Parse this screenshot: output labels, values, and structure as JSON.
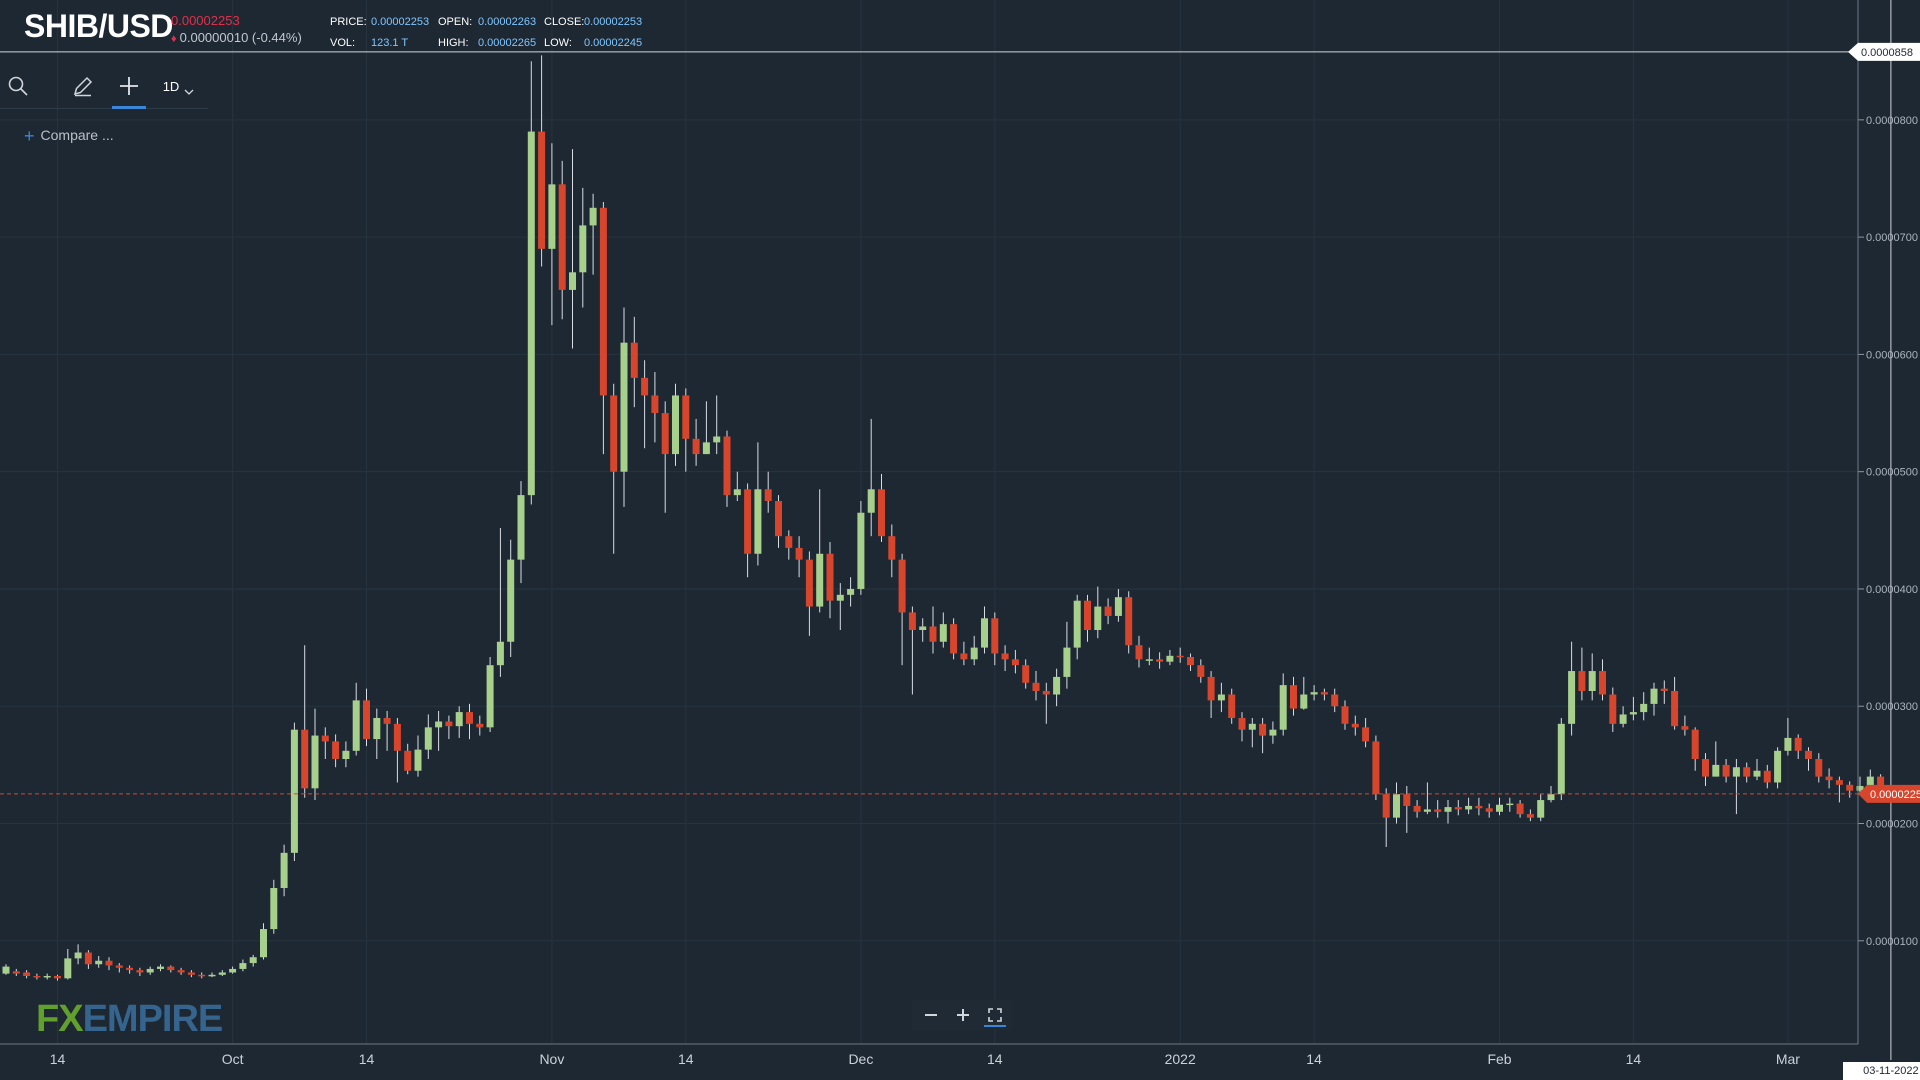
{
  "header": {
    "symbol": "SHIB/USD",
    "last_price": "0.00002253",
    "change_text": "0.00000010 (-0.44%)",
    "labels": {
      "price": "PRICE:",
      "open": "OPEN:",
      "close": "CLOSE:",
      "vol": "VOL:",
      "high": "HIGH:",
      "low": "LOW:"
    },
    "values": {
      "price": "0.00002253",
      "open": "0.00002263",
      "close": "0.00002253",
      "vol": "123.1 T",
      "high": "0.00002265",
      "low": "0.00002245"
    }
  },
  "toolbar": {
    "timeframe": "1D",
    "compare_label": "Compare ..."
  },
  "icons": [
    "search-icon",
    "pencil-icon",
    "crosshair-icon",
    "chevron-down-icon",
    "minus-icon",
    "plus-icon",
    "fullscreen-icon"
  ],
  "logo": {
    "part1": "FX",
    "part2": "EMPIRE"
  },
  "crosshair": {
    "price_label": "0.0000858",
    "date_label": "03-11-2022"
  },
  "last_price_label": "0.0000225",
  "colors": {
    "background": "#1e2833",
    "up": "#a8d08d",
    "down": "#d6452c",
    "accent": "#3a86d8",
    "price_tag": "#d6452c"
  },
  "chart_data": {
    "type": "candlestick",
    "title": "SHIB/USD",
    "ylim": [
      1.2e-06,
      8.57e-05
    ],
    "y_ticks": [
      {
        "value": 1e-05,
        "label": "0.0000100"
      },
      {
        "value": 2e-05,
        "label": "0.0000200"
      },
      {
        "value": 3e-05,
        "label": "0.0000300"
      },
      {
        "value": 4e-05,
        "label": "0.0000400"
      },
      {
        "value": 5e-05,
        "label": "0.0000500"
      },
      {
        "value": 6e-05,
        "label": "0.0000600"
      },
      {
        "value": 7e-05,
        "label": "0.0000700"
      },
      {
        "value": 8e-05,
        "label": "0.0000800"
      }
    ],
    "x_ticks": [
      {
        "date": "2021-09-14",
        "label": "14"
      },
      {
        "date": "2021-10-01",
        "label": "Oct"
      },
      {
        "date": "2021-10-14",
        "label": "14"
      },
      {
        "date": "2021-11-01",
        "label": "Nov"
      },
      {
        "date": "2021-11-14",
        "label": "14"
      },
      {
        "date": "2021-12-01",
        "label": "Dec"
      },
      {
        "date": "2021-12-14",
        "label": "14"
      },
      {
        "date": "2022-01-01",
        "label": "2022"
      },
      {
        "date": "2022-01-14",
        "label": "14"
      },
      {
        "date": "2022-02-01",
        "label": "Feb"
      },
      {
        "date": "2022-02-14",
        "label": "14"
      },
      {
        "date": "2022-03-01",
        "label": "Mar"
      }
    ],
    "grid": true,
    "last_price": 2.253e-05,
    "crosshair_date": "2022-03-11",
    "crosshair_price": 8.58e-05,
    "start_date": "2021-09-09",
    "candles": [
      [
        7.2e-06,
        7.8e-06,
        8e-06,
        7.1e-06
      ],
      [
        7.4e-06,
        7.2e-06,
        7.6e-06,
        7e-06
      ],
      [
        7.3e-06,
        7e-06,
        7.5e-06,
        6.8e-06
      ],
      [
        7e-06,
        6.9e-06,
        7.2e-06,
        6.7e-06
      ],
      [
        6.9e-06,
        7e-06,
        7.2e-06,
        6.7e-06
      ],
      [
        7e-06,
        6.8e-06,
        7.1e-06,
        6.6e-06
      ],
      [
        6.8e-06,
        8.5e-06,
        9.3e-06,
        6.7e-06
      ],
      [
        8.5e-06,
        9e-06,
        9.7e-06,
        8e-06
      ],
      [
        9e-06,
        8e-06,
        9.2e-06,
        7.6e-06
      ],
      [
        8e-06,
        8.3e-06,
        8.7e-06,
        7.7e-06
      ],
      [
        8.3e-06,
        7.9e-06,
        8.6e-06,
        7.5e-06
      ],
      [
        7.9e-06,
        7.7e-06,
        8.1e-06,
        7.3e-06
      ],
      [
        7.7e-06,
        7.5e-06,
        7.9e-06,
        7.2e-06
      ],
      [
        7.5e-06,
        7.3e-06,
        7.7e-06,
        7e-06
      ],
      [
        7.3e-06,
        7.6e-06,
        7.8e-06,
        7.1e-06
      ],
      [
        7.6e-06,
        7.8e-06,
        8e-06,
        7.4e-06
      ],
      [
        7.8e-06,
        7.5e-06,
        7.9e-06,
        7.3e-06
      ],
      [
        7.5e-06,
        7.3e-06,
        7.7e-06,
        7.1e-06
      ],
      [
        7.3e-06,
        7.1e-06,
        7.5e-06,
        6.9e-06
      ],
      [
        7.1e-06,
        7e-06,
        7.3e-06,
        6.8e-06
      ],
      [
        7e-06,
        7.1e-06,
        7.3e-06,
        6.9e-06
      ],
      [
        7.1e-06,
        7.3e-06,
        7.5e-06,
        7e-06
      ],
      [
        7.3e-06,
        7.6e-06,
        7.8e-06,
        7.2e-06
      ],
      [
        7.6e-06,
        8.1e-06,
        8.4e-06,
        7.4e-06
      ],
      [
        8.1e-06,
        8.6e-06,
        8.8e-06,
        7.8e-06
      ],
      [
        8.6e-06,
        1.1e-05,
        1.15e-05,
        8.4e-06
      ],
      [
        1.1e-05,
        1.45e-05,
        1.52e-05,
        1.06e-05
      ],
      [
        1.45e-05,
        1.75e-05,
        1.82e-05,
        1.38e-05
      ],
      [
        1.75e-05,
        2.8e-05,
        2.86e-05,
        1.68e-05
      ],
      [
        2.8e-05,
        2.3e-05,
        3.52e-05,
        2.22e-05
      ],
      [
        2.3e-05,
        2.75e-05,
        2.98e-05,
        2.2e-05
      ],
      [
        2.75e-05,
        2.7e-05,
        2.82e-05,
        2.55e-05
      ],
      [
        2.7e-05,
        2.55e-05,
        2.76e-05,
        2.48e-05
      ],
      [
        2.55e-05,
        2.62e-05,
        2.7e-05,
        2.48e-05
      ],
      [
        2.62e-05,
        3.05e-05,
        3.2e-05,
        2.58e-05
      ],
      [
        3.05e-05,
        2.72e-05,
        3.15e-05,
        2.66e-05
      ],
      [
        2.72e-05,
        2.9e-05,
        2.98e-05,
        2.55e-05
      ],
      [
        2.9e-05,
        2.85e-05,
        2.96e-05,
        2.62e-05
      ],
      [
        2.85e-05,
        2.62e-05,
        2.9e-05,
        2.35e-05
      ],
      [
        2.62e-05,
        2.45e-05,
        2.68e-05,
        2.42e-05
      ],
      [
        2.45e-05,
        2.63e-05,
        2.75e-05,
        2.4e-05
      ],
      [
        2.63e-05,
        2.82e-05,
        2.93e-05,
        2.55e-05
      ],
      [
        2.82e-05,
        2.87e-05,
        2.96e-05,
        2.62e-05
      ],
      [
        2.87e-05,
        2.83e-05,
        2.92e-05,
        2.72e-05
      ],
      [
        2.83e-05,
        2.95e-05,
        3e-05,
        2.73e-05
      ],
      [
        2.95e-05,
        2.85e-05,
        3.02e-05,
        2.72e-05
      ],
      [
        2.85e-05,
        2.82e-05,
        2.92e-05,
        2.75e-05
      ],
      [
        2.82e-05,
        3.35e-05,
        3.42e-05,
        2.78e-05
      ],
      [
        3.35e-05,
        3.55e-05,
        4.52e-05,
        3.25e-05
      ],
      [
        3.55e-05,
        4.25e-05,
        4.42e-05,
        3.42e-05
      ],
      [
        4.25e-05,
        4.8e-05,
        4.92e-05,
        4.05e-05
      ],
      [
        4.8e-05,
        7.9e-05,
        8.5e-05,
        4.72e-05
      ],
      [
        7.9e-05,
        6.9e-05,
        8.55e-05,
        6.75e-05
      ],
      [
        6.9e-05,
        7.45e-05,
        7.8e-05,
        6.25e-05
      ],
      [
        7.45e-05,
        6.55e-05,
        7.65e-05,
        6.3e-05
      ],
      [
        6.55e-05,
        6.7e-05,
        7.75e-05,
        6.05e-05
      ],
      [
        6.7e-05,
        7.1e-05,
        7.42e-05,
        6.4e-05
      ],
      [
        7.1e-05,
        7.25e-05,
        7.37e-05,
        6.68e-05
      ],
      [
        7.25e-05,
        5.65e-05,
        7.3e-05,
        5.15e-05
      ],
      [
        5.65e-05,
        5e-05,
        5.75e-05,
        4.3e-05
      ],
      [
        5e-05,
        6.1e-05,
        6.4e-05,
        4.7e-05
      ],
      [
        6.1e-05,
        5.8e-05,
        6.32e-05,
        5.55e-05
      ],
      [
        5.8e-05,
        5.65e-05,
        5.95e-05,
        5.2e-05
      ],
      [
        5.65e-05,
        5.5e-05,
        5.85e-05,
        5.25e-05
      ],
      [
        5.5e-05,
        5.15e-05,
        5.6e-05,
        4.65e-05
      ],
      [
        5.15e-05,
        5.65e-05,
        5.75e-05,
        5.05e-05
      ],
      [
        5.65e-05,
        5.28e-05,
        5.71e-05,
        5e-05
      ],
      [
        5.28e-05,
        5.15e-05,
        5.45e-05,
        5.05e-05
      ],
      [
        5.15e-05,
        5.25e-05,
        5.6e-05,
        5.15e-05
      ],
      [
        5.25e-05,
        5.3e-05,
        5.65e-05,
        5.15e-05
      ],
      [
        5.3e-05,
        4.8e-05,
        5.35e-05,
        4.7e-05
      ],
      [
        4.8e-05,
        4.85e-05,
        5e-05,
        4.75e-05
      ],
      [
        4.85e-05,
        4.3e-05,
        4.9e-05,
        4.1e-05
      ],
      [
        4.3e-05,
        4.85e-05,
        5.25e-05,
        4.2e-05
      ],
      [
        4.85e-05,
        4.75e-05,
        5e-05,
        4.65e-05
      ],
      [
        4.75e-05,
        4.45e-05,
        4.8e-05,
        4.35e-05
      ],
      [
        4.45e-05,
        4.35e-05,
        4.5e-05,
        4.25e-05
      ],
      [
        4.35e-05,
        4.25e-05,
        4.45e-05,
        4.1e-05
      ],
      [
        4.25e-05,
        3.85e-05,
        4.32e-05,
        3.6e-05
      ],
      [
        3.85e-05,
        4.3e-05,
        4.85e-05,
        3.8e-05
      ],
      [
        4.3e-05,
        3.9e-05,
        4.4e-05,
        3.75e-05
      ],
      [
        3.9e-05,
        3.95e-05,
        4.05e-05,
        3.65e-05
      ],
      [
        3.95e-05,
        4e-05,
        4.1e-05,
        3.85e-05
      ],
      [
        4e-05,
        4.65e-05,
        4.75e-05,
        3.95e-05
      ],
      [
        4.65e-05,
        4.85e-05,
        5.45e-05,
        4.45e-05
      ],
      [
        4.85e-05,
        4.45e-05,
        4.98e-05,
        4.4e-05
      ],
      [
        4.45e-05,
        4.25e-05,
        4.55e-05,
        4.1e-05
      ],
      [
        4.25e-05,
        3.8e-05,
        4.3e-05,
        3.35e-05
      ],
      [
        3.8e-05,
        3.65e-05,
        3.85e-05,
        3.1e-05
      ],
      [
        3.65e-05,
        3.68e-05,
        3.75e-05,
        3.55e-05
      ],
      [
        3.68e-05,
        3.55e-05,
        3.85e-05,
        3.45e-05
      ],
      [
        3.55e-05,
        3.7e-05,
        3.8e-05,
        3.5e-05
      ],
      [
        3.7e-05,
        3.45e-05,
        3.75e-05,
        3.4e-05
      ],
      [
        3.45e-05,
        3.4e-05,
        3.55e-05,
        3.35e-05
      ],
      [
        3.4e-05,
        3.5e-05,
        3.6e-05,
        3.35e-05
      ],
      [
        3.5e-05,
        3.75e-05,
        3.85e-05,
        3.45e-05
      ],
      [
        3.75e-05,
        3.45e-05,
        3.8e-05,
        3.35e-05
      ],
      [
        3.45e-05,
        3.4e-05,
        3.52e-05,
        3.3e-05
      ],
      [
        3.4e-05,
        3.35e-05,
        3.48e-05,
        3.28e-05
      ],
      [
        3.35e-05,
        3.2e-05,
        3.4e-05,
        3.15e-05
      ],
      [
        3.2e-05,
        3.13e-05,
        3.3e-05,
        3.05e-05
      ],
      [
        3.13e-05,
        3.1e-05,
        3.2e-05,
        2.85e-05
      ],
      [
        3.1e-05,
        3.25e-05,
        3.32e-05,
        3e-05
      ],
      [
        3.25e-05,
        3.5e-05,
        3.72e-05,
        3.15e-05
      ],
      [
        3.5e-05,
        3.9e-05,
        3.95e-05,
        3.4e-05
      ],
      [
        3.9e-05,
        3.65e-05,
        3.95e-05,
        3.55e-05
      ],
      [
        3.65e-05,
        3.85e-05,
        4.02e-05,
        3.58e-05
      ],
      [
        3.85e-05,
        3.77e-05,
        3.92e-05,
        3.7e-05
      ],
      [
        3.77e-05,
        3.93e-05,
        4e-05,
        3.72e-05
      ],
      [
        3.93e-05,
        3.52e-05,
        3.98e-05,
        3.45e-05
      ],
      [
        3.52e-05,
        3.4e-05,
        3.6e-05,
        3.33e-05
      ],
      [
        3.4e-05,
        3.4e-05,
        3.5e-05,
        3.35e-05
      ],
      [
        3.4e-05,
        3.38e-05,
        3.46e-05,
        3.32e-05
      ],
      [
        3.38e-05,
        3.43e-05,
        3.48e-05,
        3.35e-05
      ],
      [
        3.43e-05,
        3.42e-05,
        3.5e-05,
        3.37e-05
      ],
      [
        3.42e-05,
        3.35e-05,
        3.45e-05,
        3.3e-05
      ],
      [
        3.35e-05,
        3.25e-05,
        3.4e-05,
        3.2e-05
      ],
      [
        3.25e-05,
        3.05e-05,
        3.3e-05,
        2.9e-05
      ],
      [
        3.05e-05,
        3.1e-05,
        3.2e-05,
        2.95e-05
      ],
      [
        3.1e-05,
        2.9e-05,
        3.15e-05,
        2.85e-05
      ],
      [
        2.9e-05,
        2.8e-05,
        2.95e-05,
        2.7e-05
      ],
      [
        2.8e-05,
        2.85e-05,
        2.9e-05,
        2.65e-05
      ],
      [
        2.85e-05,
        2.75e-05,
        2.9e-05,
        2.6e-05
      ],
      [
        2.75e-05,
        2.8e-05,
        2.87e-05,
        2.68e-05
      ],
      [
        2.8e-05,
        3.18e-05,
        3.28e-05,
        2.75e-05
      ],
      [
        3.18e-05,
        2.98e-05,
        3.25e-05,
        2.92e-05
      ],
      [
        2.98e-05,
        3.1e-05,
        3.25e-05,
        2.97e-05
      ],
      [
        3.1e-05,
        3.12e-05,
        3.18e-05,
        3.05e-05
      ],
      [
        3.12e-05,
        3.1e-05,
        3.15e-05,
        3.05e-05
      ],
      [
        3.1e-05,
        3e-05,
        3.15e-05,
        2.95e-05
      ],
      [
        3e-05,
        2.85e-05,
        3.05e-05,
        2.8e-05
      ],
      [
        2.85e-05,
        2.82e-05,
        2.92e-05,
        2.75e-05
      ],
      [
        2.82e-05,
        2.7e-05,
        2.9e-05,
        2.65e-05
      ],
      [
        2.7e-05,
        2.25e-05,
        2.75e-05,
        2.2e-05
      ],
      [
        2.25e-05,
        2.05e-05,
        2.3e-05,
        1.8e-05
      ],
      [
        2.05e-05,
        2.25e-05,
        2.35e-05,
        2e-05
      ],
      [
        2.25e-05,
        2.15e-05,
        2.32e-05,
        1.92e-05
      ],
      [
        2.15e-05,
        2.1e-05,
        2.2e-05,
        2.05e-05
      ],
      [
        2.1e-05,
        2.12e-05,
        2.35e-05,
        2.08e-05
      ],
      [
        2.12e-05,
        2.1e-05,
        2.2e-05,
        2.05e-05
      ],
      [
        2.1e-05,
        2.14e-05,
        2.2e-05,
        2e-05
      ],
      [
        2.14e-05,
        2.12e-05,
        2.2e-05,
        2.07e-05
      ],
      [
        2.12e-05,
        2.15e-05,
        2.22e-05,
        2.08e-05
      ],
      [
        2.15e-05,
        2.13e-05,
        2.22e-05,
        2.07e-05
      ],
      [
        2.13e-05,
        2.1e-05,
        2.17e-05,
        2.05e-05
      ],
      [
        2.1e-05,
        2.16e-05,
        2.22e-05,
        2.07e-05
      ],
      [
        2.16e-05,
        2.17e-05,
        2.22e-05,
        2.1e-05
      ],
      [
        2.17e-05,
        2.08e-05,
        2.2e-05,
        2.05e-05
      ],
      [
        2.08e-05,
        2.05e-05,
        2.12e-05,
        2.02e-05
      ],
      [
        2.05e-05,
        2.2e-05,
        2.25e-05,
        2.02e-05
      ],
      [
        2.2e-05,
        2.25e-05,
        2.32e-05,
        2.18e-05
      ],
      [
        2.25e-05,
        2.85e-05,
        2.9e-05,
        2.2e-05
      ],
      [
        2.85e-05,
        3.3e-05,
        3.55e-05,
        2.75e-05
      ],
      [
        3.3e-05,
        3.13e-05,
        3.5e-05,
        3.05e-05
      ],
      [
        3.13e-05,
        3.3e-05,
        3.45e-05,
        3.05e-05
      ],
      [
        3.3e-05,
        3.1e-05,
        3.4e-05,
        3.05e-05
      ],
      [
        3.1e-05,
        2.85e-05,
        3.16e-05,
        2.78e-05
      ],
      [
        2.85e-05,
        2.93e-05,
        3e-05,
        2.82e-05
      ],
      [
        2.93e-05,
        2.95e-05,
        3.08e-05,
        2.88e-05
      ],
      [
        2.95e-05,
        3.02e-05,
        3.12e-05,
        2.88e-05
      ],
      [
        3.02e-05,
        3.15e-05,
        3.2e-05,
        2.92e-05
      ],
      [
        3.15e-05,
        3.13e-05,
        3.22e-05,
        3.02e-05
      ],
      [
        3.13e-05,
        2.83e-05,
        3.25e-05,
        2.8e-05
      ],
      [
        2.83e-05,
        2.8e-05,
        2.92e-05,
        2.75e-05
      ],
      [
        2.8e-05,
        2.55e-05,
        2.82e-05,
        2.45e-05
      ],
      [
        2.55e-05,
        2.4e-05,
        2.6e-05,
        2.32e-05
      ],
      [
        2.4e-05,
        2.5e-05,
        2.7e-05,
        2.4e-05
      ],
      [
        2.5e-05,
        2.4e-05,
        2.55e-05,
        2.35e-05
      ],
      [
        2.4e-05,
        2.48e-05,
        2.55e-05,
        2.08e-05
      ],
      [
        2.48e-05,
        2.4e-05,
        2.52e-05,
        2.35e-05
      ],
      [
        2.4e-05,
        2.45e-05,
        2.55e-05,
        2.37e-05
      ],
      [
        2.45e-05,
        2.35e-05,
        2.5e-05,
        2.3e-05
      ],
      [
        2.35e-05,
        2.62e-05,
        2.65e-05,
        2.3e-05
      ],
      [
        2.62e-05,
        2.73e-05,
        2.9e-05,
        2.58e-05
      ],
      [
        2.73e-05,
        2.62e-05,
        2.76e-05,
        2.55e-05
      ],
      [
        2.62e-05,
        2.55e-05,
        2.65e-05,
        2.45e-05
      ],
      [
        2.55e-05,
        2.4e-05,
        2.6e-05,
        2.35e-05
      ],
      [
        2.4e-05,
        2.37e-05,
        2.47e-05,
        2.3e-05
      ],
      [
        2.37e-05,
        2.33e-05,
        2.4e-05,
        2.18e-05
      ],
      [
        2.33e-05,
        2.28e-05,
        2.36e-05,
        2.22e-05
      ],
      [
        2.28e-05,
        2.32e-05,
        2.4e-05,
        2.25e-05
      ],
      [
        2.32e-05,
        2.4e-05,
        2.46e-05,
        2.28e-05
      ],
      [
        2.4e-05,
        2.25e-05,
        2.42e-05,
        2.22e-05
      ]
    ]
  }
}
